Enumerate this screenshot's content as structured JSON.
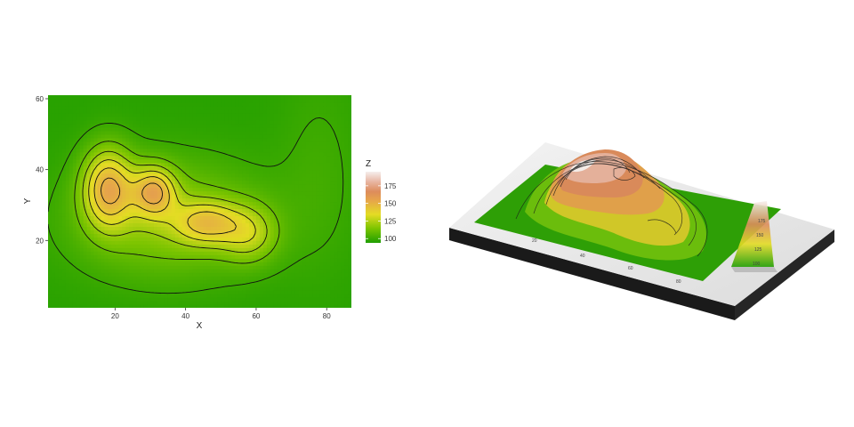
{
  "chart_data": [
    {
      "type": "contour",
      "title": "",
      "xlabel": "X",
      "ylabel": "Y",
      "xlim": [
        1,
        87
      ],
      "ylim": [
        1,
        61
      ],
      "x_ticks": [
        20,
        40,
        60,
        80
      ],
      "y_ticks": [
        20,
        40,
        60
      ],
      "legend": {
        "title": "Z",
        "position": "right",
        "range": [
          94,
          195
        ],
        "labels": [
          {
            "value": 100,
            "text": "100"
          },
          {
            "value": 125,
            "text": "125"
          },
          {
            "value": 150,
            "text": "150"
          },
          {
            "value": 175,
            "text": "175"
          }
        ]
      },
      "color_scale": {
        "low": "#1f9e00",
        "stops": [
          "#1f9e00",
          "#7bc400",
          "#e4dc24",
          "#e6a44b",
          "#dd8c5c",
          "#e8b6a3",
          "#f6efed"
        ]
      },
      "contour_levels": [
        100,
        110,
        120,
        130,
        140,
        150,
        160,
        170,
        180,
        190
      ],
      "peaks": [
        {
          "x": 18,
          "y": 35,
          "z": 190
        },
        {
          "x": 30,
          "y": 34,
          "z": 180
        },
        {
          "x": 48,
          "y": 25,
          "z": 160
        },
        {
          "x": 58,
          "y": 22,
          "z": 145
        }
      ],
      "grid": false
    },
    {
      "type": "surface-3d",
      "title": "",
      "x_ticks": [
        20,
        40,
        60,
        80
      ],
      "legend_labels": [
        "100",
        "125",
        "150",
        "175"
      ]
    }
  ]
}
